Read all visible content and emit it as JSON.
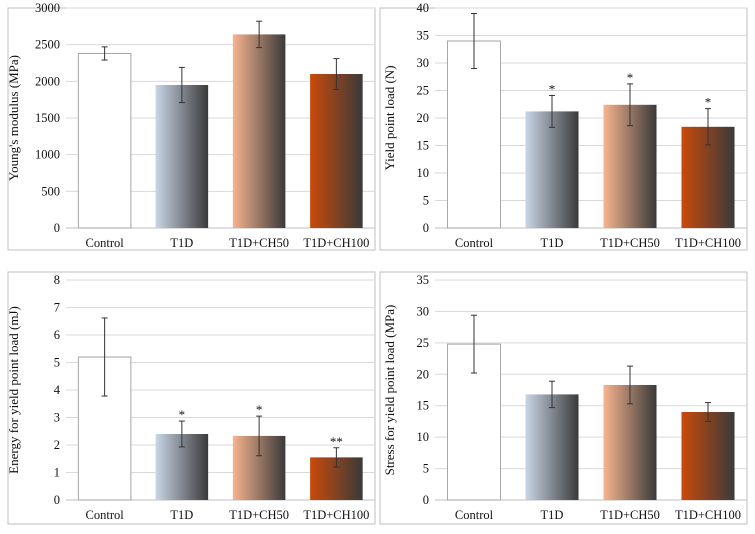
{
  "chart_data": [
    {
      "type": "bar",
      "title": "",
      "xlabel": "",
      "ylabel": "Young's modulus (MPa)",
      "categories": [
        "Control",
        "T1D",
        "T1D+CH50",
        "T1D+CH100"
      ],
      "values": [
        2380,
        1950,
        2640,
        2100
      ],
      "errors": [
        90,
        240,
        180,
        210
      ],
      "significance": [
        "",
        "",
        "",
        ""
      ],
      "ylim": [
        0,
        3000
      ],
      "yticks": [
        0,
        500,
        1000,
        1500,
        2000,
        2500,
        3000
      ],
      "grid": true
    },
    {
      "type": "bar",
      "title": "",
      "xlabel": "",
      "ylabel": "Yield point load (N)",
      "categories": [
        "Control",
        "T1D",
        "T1D+CH50",
        "T1D+CH100"
      ],
      "values": [
        34.0,
        21.2,
        22.4,
        18.4
      ],
      "errors": [
        5.0,
        2.9,
        3.8,
        3.3
      ],
      "significance": [
        "",
        "*",
        "*",
        "*"
      ],
      "ylim": [
        0,
        40
      ],
      "yticks": [
        0,
        5,
        10,
        15,
        20,
        25,
        30,
        35,
        40
      ],
      "grid": true
    },
    {
      "type": "bar",
      "title": "",
      "xlabel": "",
      "ylabel": "Energy for yield point load (mJ)",
      "categories": [
        "Control",
        "T1D",
        "T1D+CH50",
        "T1D+CH100"
      ],
      "values": [
        5.2,
        2.4,
        2.33,
        1.55
      ],
      "errors": [
        1.42,
        0.47,
        0.72,
        0.35
      ],
      "significance": [
        "",
        "*",
        "*",
        "**"
      ],
      "ylim": [
        0,
        8
      ],
      "yticks": [
        0,
        1,
        2,
        3,
        4,
        5,
        6,
        7,
        8
      ],
      "grid": true
    },
    {
      "type": "bar",
      "title": "",
      "xlabel": "",
      "ylabel": "Stress for yield point load (MPa)",
      "categories": [
        "Control",
        "T1D",
        "T1D+CH50",
        "T1D+CH100"
      ],
      "values": [
        24.8,
        16.8,
        18.3,
        14.0
      ],
      "errors": [
        4.6,
        2.1,
        3.0,
        1.5
      ],
      "significance": [
        "",
        "",
        "",
        ""
      ],
      "ylim": [
        0,
        35
      ],
      "yticks": [
        0,
        5,
        10,
        15,
        20,
        25,
        30,
        35
      ],
      "grid": true
    }
  ],
  "colors": {
    "grid": "#d9d9d9",
    "frame": "#bfbfbf",
    "control_fill": "#ffffff",
    "control_stroke": "#a6a6a6",
    "t1d_light": "#c9d6e6",
    "t1d_dark": "#3a3a3a",
    "ch50_light": "#f7b48e",
    "ch50_dark": "#3a3a3a",
    "ch100_light": "#c94a0a",
    "ch100_dark": "#3a3a3a",
    "error_bar": "#333333"
  }
}
